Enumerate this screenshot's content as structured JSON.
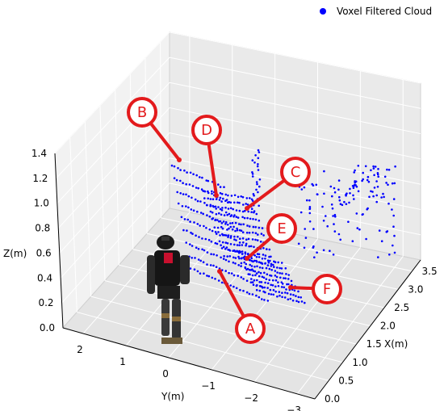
{
  "chart_data": {
    "type": "scatter",
    "projection": "3d",
    "title": "",
    "xlabel": "X(m)",
    "ylabel": "Y(m)",
    "zlabel": "Z(m)",
    "x_ticks": [
      "0.0",
      "0.5",
      "1.0",
      "1.5",
      "2.0",
      "2.5",
      "3.0",
      "3.5"
    ],
    "y_ticks": [
      "2",
      "1",
      "0",
      "−1",
      "−2",
      "−3"
    ],
    "z_ticks": [
      "0.0",
      "0.2",
      "0.4",
      "0.6",
      "0.8",
      "1.0",
      "1.2",
      "1.4"
    ],
    "xlim": [
      0,
      3.8
    ],
    "ylim": [
      -3.5,
      2.6
    ],
    "zlim": [
      0,
      1.45
    ],
    "grid": true,
    "legend_position": "top-right",
    "series": [
      {
        "name": "Voxel Filtered Cloud",
        "color": "#0000ff",
        "marker": "point"
      }
    ],
    "callouts": [
      "A",
      "B",
      "C",
      "D",
      "E",
      "F"
    ],
    "callout_color": "#e31a1c",
    "robot_figure": "humanoid-robot"
  }
}
